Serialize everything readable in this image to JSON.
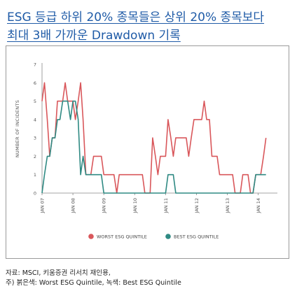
{
  "header": {
    "title_line1": "ESG 등급 하위 20% 종목들은 상위 20% 종목보다",
    "title_line2": "최대 3배 가까운 Drawdown 기록"
  },
  "footnote": {
    "line1": "자료: MSCI, 키움증권 리서치 재인용,",
    "line2": "주) 붉은색: Worst ESG Quintile, 녹색: Best ESG Quintile"
  },
  "chart_data": {
    "type": "line",
    "title": "",
    "xlabel": "",
    "ylabel": "NUMBER OF INCIDENTS",
    "ylim": [
      0,
      7
    ],
    "yticks": [
      "0",
      "1",
      "2",
      "3",
      "4",
      "5",
      "6",
      "7"
    ],
    "xlim": [
      2007.0,
      2014.62
    ],
    "xtick_positions": [
      2007,
      2008,
      2009,
      2010,
      2011,
      2012,
      2013,
      2014
    ],
    "xticks": [
      "JAN 07",
      "JAN 08",
      "JAN 09",
      "JAN 10",
      "JAN 11",
      "JAN 12",
      "JAN 13",
      "JAN 14"
    ],
    "grid": false,
    "legend": "bottom",
    "series": [
      {
        "name": "WORST ESG QUINTILE",
        "color": "#d9575b",
        "points": [
          [
            2007.0,
            5
          ],
          [
            2007.08,
            6
          ],
          [
            2007.17,
            4
          ],
          [
            2007.25,
            2
          ],
          [
            2007.33,
            3
          ],
          [
            2007.42,
            3
          ],
          [
            2007.5,
            5
          ],
          [
            2007.58,
            5
          ],
          [
            2007.67,
            5
          ],
          [
            2007.75,
            6
          ],
          [
            2007.83,
            5
          ],
          [
            2007.92,
            5
          ],
          [
            2008.0,
            5
          ],
          [
            2008.08,
            4
          ],
          [
            2008.17,
            5
          ],
          [
            2008.25,
            6
          ],
          [
            2008.33,
            4
          ],
          [
            2008.42,
            1
          ],
          [
            2008.5,
            1
          ],
          [
            2008.58,
            1
          ],
          [
            2008.67,
            2
          ],
          [
            2008.75,
            2
          ],
          [
            2008.83,
            2
          ],
          [
            2008.92,
            2
          ],
          [
            2009.0,
            1
          ],
          [
            2009.08,
            1
          ],
          [
            2009.17,
            1
          ],
          [
            2009.25,
            1
          ],
          [
            2009.33,
            1
          ],
          [
            2009.42,
            0
          ],
          [
            2009.5,
            1
          ],
          [
            2009.58,
            1
          ],
          [
            2009.67,
            1
          ],
          [
            2009.75,
            1
          ],
          [
            2009.83,
            1
          ],
          [
            2009.92,
            1
          ],
          [
            2010.0,
            1
          ],
          [
            2010.08,
            1
          ],
          [
            2010.17,
            1
          ],
          [
            2010.25,
            1
          ],
          [
            2010.33,
            0
          ],
          [
            2010.42,
            0
          ],
          [
            2010.5,
            0
          ],
          [
            2010.58,
            3
          ],
          [
            2010.67,
            2
          ],
          [
            2010.75,
            1
          ],
          [
            2010.83,
            2
          ],
          [
            2010.92,
            2
          ],
          [
            2011.0,
            2
          ],
          [
            2011.08,
            4
          ],
          [
            2011.17,
            3
          ],
          [
            2011.25,
            2
          ],
          [
            2011.33,
            3
          ],
          [
            2011.42,
            3
          ],
          [
            2011.5,
            3
          ],
          [
            2011.58,
            3
          ],
          [
            2011.67,
            3
          ],
          [
            2011.75,
            2
          ],
          [
            2011.83,
            3
          ],
          [
            2011.92,
            4
          ],
          [
            2012.0,
            4
          ],
          [
            2012.08,
            4
          ],
          [
            2012.17,
            4
          ],
          [
            2012.25,
            5
          ],
          [
            2012.33,
            4
          ],
          [
            2012.42,
            4
          ],
          [
            2012.5,
            2
          ],
          [
            2012.58,
            2
          ],
          [
            2012.67,
            2
          ],
          [
            2012.75,
            1
          ],
          [
            2012.83,
            1
          ],
          [
            2012.92,
            1
          ],
          [
            2013.0,
            1
          ],
          [
            2013.08,
            1
          ],
          [
            2013.17,
            1
          ],
          [
            2013.25,
            0
          ],
          [
            2013.33,
            0
          ],
          [
            2013.42,
            0
          ],
          [
            2013.5,
            1
          ],
          [
            2013.58,
            1
          ],
          [
            2013.67,
            1
          ],
          [
            2013.75,
            0
          ],
          [
            2013.83,
            0
          ],
          [
            2013.92,
            1
          ],
          [
            2014.0,
            1
          ],
          [
            2014.08,
            1
          ],
          [
            2014.17,
            2
          ],
          [
            2014.25,
            3
          ]
        ]
      },
      {
        "name": "BEST ESG QUINTILE",
        "color": "#2f8a83",
        "points": [
          [
            2007.0,
            0
          ],
          [
            2007.08,
            1
          ],
          [
            2007.17,
            2
          ],
          [
            2007.25,
            2
          ],
          [
            2007.33,
            3
          ],
          [
            2007.42,
            3
          ],
          [
            2007.5,
            4
          ],
          [
            2007.58,
            4
          ],
          [
            2007.67,
            5
          ],
          [
            2007.75,
            5
          ],
          [
            2007.83,
            5
          ],
          [
            2007.92,
            4
          ],
          [
            2008.0,
            5
          ],
          [
            2008.08,
            5
          ],
          [
            2008.17,
            4
          ],
          [
            2008.25,
            1
          ],
          [
            2008.33,
            2
          ],
          [
            2008.42,
            1
          ],
          [
            2008.5,
            1
          ],
          [
            2008.58,
            1
          ],
          [
            2008.67,
            1
          ],
          [
            2008.75,
            1
          ],
          [
            2008.83,
            1
          ],
          [
            2008.92,
            1
          ],
          [
            2009.0,
            0
          ],
          [
            2009.08,
            0
          ],
          [
            2009.17,
            0
          ],
          [
            2009.25,
            0
          ],
          [
            2009.33,
            0
          ],
          [
            2009.42,
            0
          ],
          [
            2009.5,
            0
          ],
          [
            2009.58,
            0
          ],
          [
            2009.67,
            0
          ],
          [
            2009.75,
            0
          ],
          [
            2009.83,
            0
          ],
          [
            2009.92,
            0
          ],
          [
            2010.0,
            0
          ],
          [
            2010.08,
            0
          ],
          [
            2010.17,
            0
          ],
          [
            2010.25,
            0
          ],
          [
            2010.33,
            0
          ],
          [
            2010.42,
            0
          ],
          [
            2010.5,
            0
          ],
          [
            2010.58,
            0
          ],
          [
            2010.67,
            0
          ],
          [
            2010.75,
            0
          ],
          [
            2010.83,
            0
          ],
          [
            2010.92,
            0
          ],
          [
            2011.0,
            0
          ],
          [
            2011.08,
            1
          ],
          [
            2011.17,
            1
          ],
          [
            2011.25,
            1
          ],
          [
            2011.33,
            0
          ],
          [
            2011.42,
            0
          ],
          [
            2011.5,
            0
          ],
          [
            2011.58,
            0
          ],
          [
            2011.67,
            0
          ],
          [
            2011.75,
            0
          ],
          [
            2011.83,
            0
          ],
          [
            2011.92,
            0
          ],
          [
            2012.0,
            0
          ],
          [
            2012.08,
            0
          ],
          [
            2012.17,
            0
          ],
          [
            2012.25,
            0
          ],
          [
            2012.33,
            0
          ],
          [
            2012.42,
            0
          ],
          [
            2012.5,
            0
          ],
          [
            2012.58,
            0
          ],
          [
            2012.67,
            0
          ],
          [
            2012.75,
            0
          ],
          [
            2012.83,
            0
          ],
          [
            2012.92,
            0
          ],
          [
            2013.0,
            0
          ],
          [
            2013.08,
            0
          ],
          [
            2013.17,
            0
          ],
          [
            2013.25,
            0
          ],
          [
            2013.33,
            0
          ],
          [
            2013.42,
            0
          ],
          [
            2013.5,
            0
          ],
          [
            2013.58,
            0
          ],
          [
            2013.67,
            0
          ],
          [
            2013.75,
            0
          ],
          [
            2013.83,
            0
          ],
          [
            2013.92,
            1
          ],
          [
            2014.0,
            1
          ],
          [
            2014.08,
            1
          ],
          [
            2014.17,
            1
          ],
          [
            2014.25,
            1
          ]
        ]
      }
    ]
  }
}
